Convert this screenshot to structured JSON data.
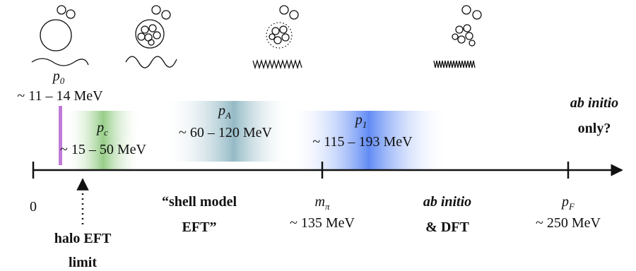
{
  "scales": [
    {
      "symbol": "p",
      "subscript": "0",
      "range": "~ 11 – 14 MeV"
    },
    {
      "symbol": "p",
      "subscript": "c",
      "range": "~ 15 – 50 MeV"
    },
    {
      "symbol": "p",
      "subscript": "A",
      "range": "~ 60 – 120 MeV"
    },
    {
      "symbol": "p",
      "subscript": "1",
      "range": "~ 115 – 193 MeV"
    }
  ],
  "axis": {
    "origin": "0",
    "m_pi": {
      "symbol": "m",
      "subscript": "π",
      "value": "~ 135 MeV"
    },
    "p_F": {
      "symbol": "p",
      "subscript": "F",
      "value": "~ 250 MeV"
    }
  },
  "regions": {
    "halo": [
      "halo EFT",
      "limit"
    ],
    "shell": [
      "“shell model",
      "EFT”"
    ],
    "ab_initio_dft": {
      "emph": "ab initio",
      "rest": "& DFT"
    },
    "ab_initio_only": {
      "emph": "ab initio",
      "rest": "only?"
    }
  }
}
